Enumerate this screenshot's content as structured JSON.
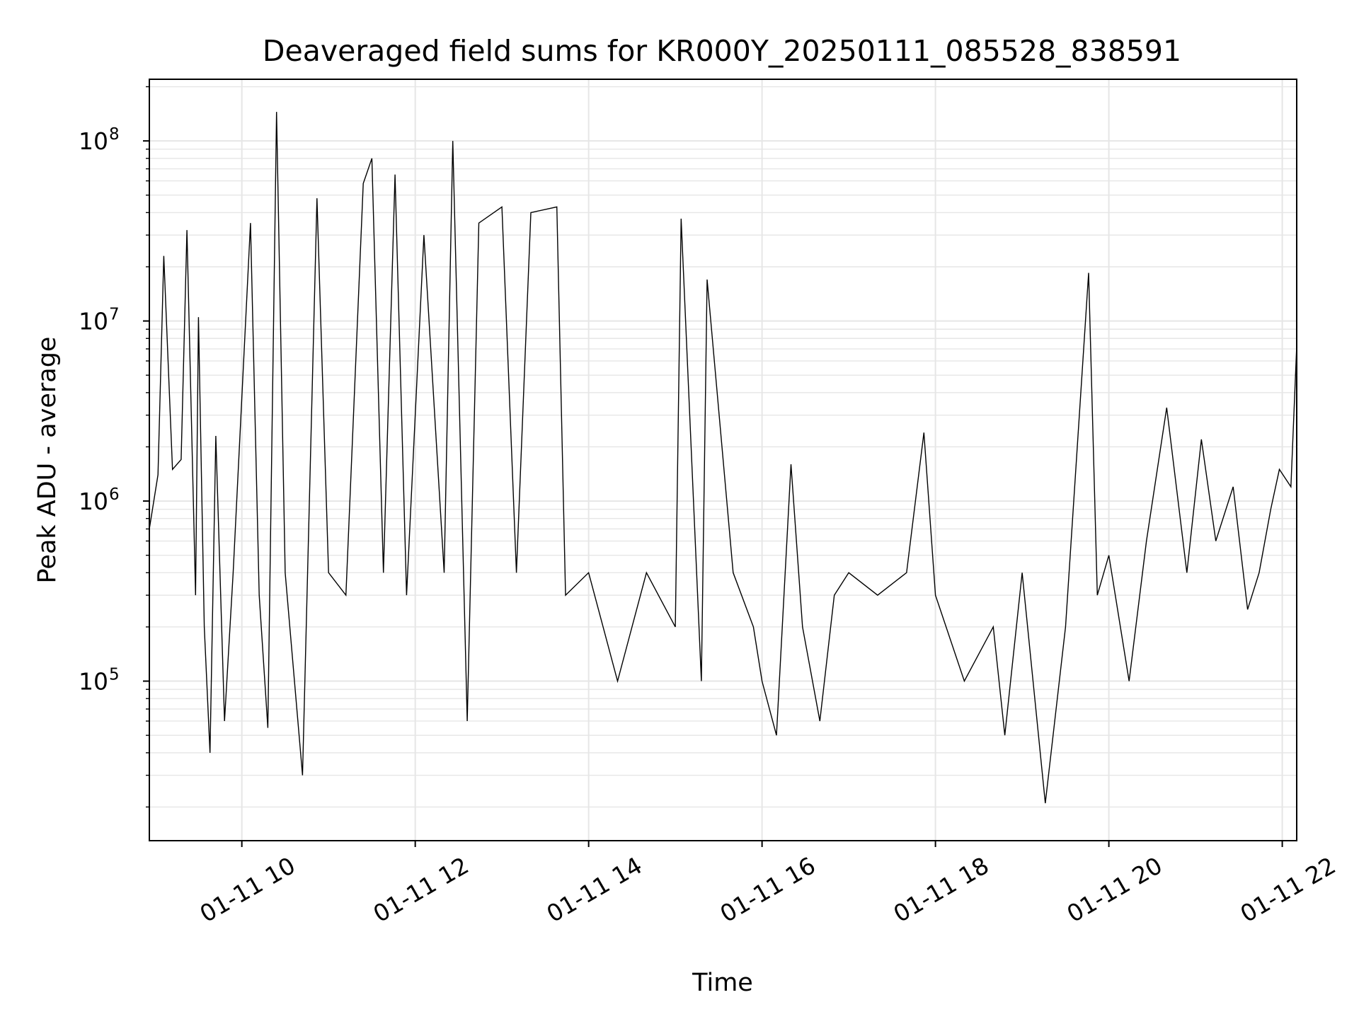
{
  "chart_data": {
    "type": "line",
    "title": "Deaveraged field sums for KR000Y_20250111_085528_838591",
    "xlabel": "Time",
    "ylabel": "Peak ADU - average",
    "x_scale": "time",
    "y_scale": "log",
    "xlim": [
      "2025-01-11T08:56",
      "2025-01-11T22:10"
    ],
    "ylim": [
      13000,
      220000000
    ],
    "grid": true,
    "legend": "none",
    "line_color": "#000000",
    "grid_color": "#e6e6e6",
    "x_ticks": [
      {
        "t": "2025-01-11T10:00",
        "label": "01-11 10"
      },
      {
        "t": "2025-01-11T12:00",
        "label": "01-11 12"
      },
      {
        "t": "2025-01-11T14:00",
        "label": "01-11 14"
      },
      {
        "t": "2025-01-11T16:00",
        "label": "01-11 16"
      },
      {
        "t": "2025-01-11T18:00",
        "label": "01-11 18"
      },
      {
        "t": "2025-01-11T20:00",
        "label": "01-11 20"
      },
      {
        "t": "2025-01-11T22:00",
        "label": "01-11 22"
      }
    ],
    "y_ticks": [
      {
        "value": 100000,
        "base": "10",
        "exp": "5"
      },
      {
        "value": 1000000,
        "base": "10",
        "exp": "6"
      },
      {
        "value": 10000000,
        "base": "10",
        "exp": "7"
      },
      {
        "value": 100000000,
        "base": "10",
        "exp": "8"
      }
    ],
    "series": [
      {
        "x": [
          "2025-01-11T08:56",
          "2025-01-11T09:02",
          "2025-01-11T09:06",
          "2025-01-11T09:12",
          "2025-01-11T09:18",
          "2025-01-11T09:22",
          "2025-01-11T09:28",
          "2025-01-11T09:30",
          "2025-01-11T09:34",
          "2025-01-11T09:38",
          "2025-01-11T09:42",
          "2025-01-11T09:48",
          "2025-01-11T09:54",
          "2025-01-11T10:06",
          "2025-01-11T10:12",
          "2025-01-11T10:18",
          "2025-01-11T10:24",
          "2025-01-11T10:30",
          "2025-01-11T10:42",
          "2025-01-11T10:52",
          "2025-01-11T11:00",
          "2025-01-11T11:12",
          "2025-01-11T11:24",
          "2025-01-11T11:30",
          "2025-01-11T11:38",
          "2025-01-11T11:46",
          "2025-01-11T11:54",
          "2025-01-11T12:06",
          "2025-01-11T12:20",
          "2025-01-11T12:26",
          "2025-01-11T12:36",
          "2025-01-11T12:44",
          "2025-01-11T13:00",
          "2025-01-11T13:10",
          "2025-01-11T13:20",
          "2025-01-11T13:38",
          "2025-01-11T13:44",
          "2025-01-11T14:00",
          "2025-01-11T14:20",
          "2025-01-11T14:40",
          "2025-01-11T15:00",
          "2025-01-11T15:04",
          "2025-01-11T15:18",
          "2025-01-11T15:22",
          "2025-01-11T15:40",
          "2025-01-11T15:54",
          "2025-01-11T16:00",
          "2025-01-11T16:10",
          "2025-01-11T16:20",
          "2025-01-11T16:28",
          "2025-01-11T16:40",
          "2025-01-11T16:50",
          "2025-01-11T17:00",
          "2025-01-11T17:20",
          "2025-01-11T17:40",
          "2025-01-11T17:52",
          "2025-01-11T18:00",
          "2025-01-11T18:20",
          "2025-01-11T18:40",
          "2025-01-11T18:48",
          "2025-01-11T19:00",
          "2025-01-11T19:16",
          "2025-01-11T19:30",
          "2025-01-11T19:46",
          "2025-01-11T19:52",
          "2025-01-11T20:00",
          "2025-01-11T20:14",
          "2025-01-11T20:26",
          "2025-01-11T20:40",
          "2025-01-11T20:54",
          "2025-01-11T21:04",
          "2025-01-11T21:14",
          "2025-01-11T21:26",
          "2025-01-11T21:36",
          "2025-01-11T21:44",
          "2025-01-11T21:52",
          "2025-01-11T21:58",
          "2025-01-11T22:06",
          "2025-01-11T22:10"
        ],
        "y": [
          700000,
          1400000,
          23000000,
          1500000,
          1700000,
          32000000,
          300000,
          10500000,
          200000,
          40000,
          2300000,
          60000,
          400000,
          35000000,
          300000,
          55000,
          145000000,
          400000,
          30000,
          48000000,
          400000,
          300000,
          58000000,
          80000000,
          400000,
          65000000,
          300000,
          30000000,
          400000,
          100000000,
          60000,
          35000000,
          43000000,
          400000,
          40000000,
          43000000,
          300000,
          400000,
          100000,
          400000,
          200000,
          37000000,
          100000,
          17000000,
          400000,
          200000,
          100000,
          50000,
          1600000,
          200000,
          60000,
          300000,
          400000,
          300000,
          400000,
          2400000,
          300000,
          100000,
          200000,
          50000,
          400000,
          21000,
          200000,
          18500000,
          300000,
          500000,
          100000,
          600000,
          3300000,
          400000,
          2200000,
          600000,
          1200000,
          250000,
          400000,
          900000,
          1500000,
          1200000,
          7300000
        ]
      }
    ]
  }
}
